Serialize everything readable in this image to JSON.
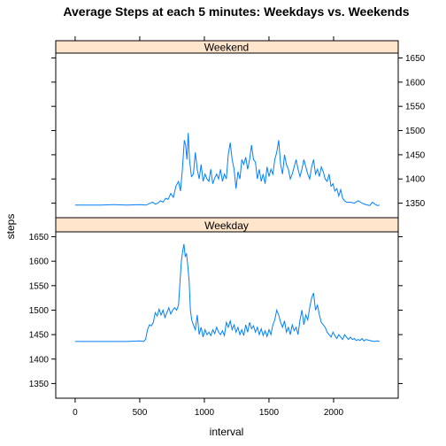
{
  "chart_data": {
    "type": "line",
    "title": "Average Steps at each 5 minutes: Weekdays vs. Weekends",
    "xlabel": "interval",
    "ylabel": "steps",
    "xlim": [
      -150,
      2500
    ],
    "ylim": [
      1320,
      1660
    ],
    "x_ticks": [
      "0",
      "500",
      "1000",
      "1500",
      "2000"
    ],
    "x_tick_values": [
      0,
      500,
      1000,
      1500,
      2000
    ],
    "y_ticks": [
      "1350",
      "1400",
      "1450",
      "1500",
      "1550",
      "1600",
      "1650"
    ],
    "y_tick_values": [
      1350,
      1400,
      1450,
      1500,
      1550,
      1600,
      1650
    ],
    "line_color": "#0080ff",
    "strip_color": "#ffe5cc",
    "panels": [
      {
        "name": "Weekend",
        "y_axis_side": "right",
        "points": [
          [
            0,
            1346
          ],
          [
            100,
            1346
          ],
          [
            200,
            1346
          ],
          [
            300,
            1347
          ],
          [
            400,
            1346
          ],
          [
            500,
            1347
          ],
          [
            550,
            1346
          ],
          [
            580,
            1350
          ],
          [
            600,
            1352
          ],
          [
            620,
            1348
          ],
          [
            640,
            1350
          ],
          [
            660,
            1355
          ],
          [
            680,
            1352
          ],
          [
            700,
            1360
          ],
          [
            720,
            1358
          ],
          [
            740,
            1370
          ],
          [
            760,
            1362
          ],
          [
            780,
            1385
          ],
          [
            800,
            1395
          ],
          [
            815,
            1375
          ],
          [
            830,
            1420
          ],
          [
            845,
            1480
          ],
          [
            855,
            1470
          ],
          [
            865,
            1440
          ],
          [
            875,
            1495
          ],
          [
            885,
            1440
          ],
          [
            900,
            1405
          ],
          [
            915,
            1410
          ],
          [
            930,
            1455
          ],
          [
            945,
            1420
          ],
          [
            960,
            1400
          ],
          [
            975,
            1430
          ],
          [
            990,
            1395
          ],
          [
            1005,
            1410
          ],
          [
            1020,
            1400
          ],
          [
            1035,
            1395
          ],
          [
            1050,
            1420
          ],
          [
            1065,
            1390
          ],
          [
            1080,
            1402
          ],
          [
            1095,
            1410
          ],
          [
            1110,
            1400
          ],
          [
            1125,
            1420
          ],
          [
            1140,
            1395
          ],
          [
            1155,
            1410
          ],
          [
            1170,
            1400
          ],
          [
            1185,
            1450
          ],
          [
            1200,
            1475
          ],
          [
            1215,
            1440
          ],
          [
            1230,
            1420
          ],
          [
            1245,
            1380
          ],
          [
            1260,
            1415
          ],
          [
            1275,
            1400
          ],
          [
            1290,
            1440
          ],
          [
            1305,
            1430
          ],
          [
            1320,
            1445
          ],
          [
            1335,
            1420
          ],
          [
            1350,
            1440
          ],
          [
            1365,
            1470
          ],
          [
            1380,
            1440
          ],
          [
            1395,
            1435
          ],
          [
            1410,
            1400
          ],
          [
            1425,
            1420
          ],
          [
            1440,
            1395
          ],
          [
            1455,
            1410
          ],
          [
            1470,
            1390
          ],
          [
            1485,
            1425
          ],
          [
            1500,
            1405
          ],
          [
            1515,
            1420
          ],
          [
            1530,
            1410
          ],
          [
            1545,
            1440
          ],
          [
            1560,
            1455
          ],
          [
            1575,
            1480
          ],
          [
            1590,
            1430
          ],
          [
            1605,
            1410
          ],
          [
            1620,
            1450
          ],
          [
            1635,
            1430
          ],
          [
            1650,
            1420
          ],
          [
            1665,
            1400
          ],
          [
            1680,
            1410
          ],
          [
            1695,
            1425
          ],
          [
            1710,
            1440
          ],
          [
            1725,
            1420
          ],
          [
            1740,
            1405
          ],
          [
            1755,
            1420
          ],
          [
            1770,
            1440
          ],
          [
            1785,
            1425
          ],
          [
            1800,
            1410
          ],
          [
            1815,
            1400
          ],
          [
            1830,
            1425
          ],
          [
            1845,
            1440
          ],
          [
            1860,
            1410
          ],
          [
            1875,
            1420
          ],
          [
            1890,
            1405
          ],
          [
            1905,
            1425
          ],
          [
            1920,
            1415
          ],
          [
            1935,
            1400
          ],
          [
            1950,
            1395
          ],
          [
            1965,
            1410
          ],
          [
            1980,
            1385
          ],
          [
            1995,
            1390
          ],
          [
            2010,
            1375
          ],
          [
            2025,
            1380
          ],
          [
            2040,
            1365
          ],
          [
            2055,
            1378
          ],
          [
            2070,
            1360
          ],
          [
            2085,
            1355
          ],
          [
            2100,
            1352
          ],
          [
            2130,
            1352
          ],
          [
            2160,
            1350
          ],
          [
            2190,
            1355
          ],
          [
            2220,
            1350
          ],
          [
            2250,
            1347
          ],
          [
            2280,
            1345
          ],
          [
            2300,
            1352
          ],
          [
            2320,
            1348
          ],
          [
            2340,
            1345
          ],
          [
            2355,
            1346
          ]
        ]
      },
      {
        "name": "Weekday",
        "y_axis_side": "left",
        "points": [
          [
            0,
            1436
          ],
          [
            100,
            1436
          ],
          [
            200,
            1436
          ],
          [
            300,
            1436
          ],
          [
            400,
            1436
          ],
          [
            500,
            1437
          ],
          [
            530,
            1436
          ],
          [
            545,
            1440
          ],
          [
            560,
            1460
          ],
          [
            575,
            1470
          ],
          [
            590,
            1468
          ],
          [
            605,
            1475
          ],
          [
            620,
            1495
          ],
          [
            635,
            1488
          ],
          [
            650,
            1502
          ],
          [
            665,
            1490
          ],
          [
            680,
            1500
          ],
          [
            695,
            1485
          ],
          [
            710,
            1495
          ],
          [
            725,
            1505
          ],
          [
            740,
            1492
          ],
          [
            755,
            1500
          ],
          [
            770,
            1505
          ],
          [
            785,
            1500
          ],
          [
            800,
            1510
          ],
          [
            812,
            1560
          ],
          [
            822,
            1600
          ],
          [
            832,
            1620
          ],
          [
            842,
            1635
          ],
          [
            852,
            1610
          ],
          [
            862,
            1615
          ],
          [
            872,
            1590
          ],
          [
            882,
            1560
          ],
          [
            892,
            1500
          ],
          [
            902,
            1480
          ],
          [
            915,
            1470
          ],
          [
            930,
            1460
          ],
          [
            945,
            1490
          ],
          [
            960,
            1450
          ],
          [
            975,
            1465
          ],
          [
            990,
            1445
          ],
          [
            1005,
            1460
          ],
          [
            1020,
            1450
          ],
          [
            1035,
            1455
          ],
          [
            1050,
            1448
          ],
          [
            1065,
            1460
          ],
          [
            1080,
            1452
          ],
          [
            1095,
            1465
          ],
          [
            1110,
            1455
          ],
          [
            1125,
            1450
          ],
          [
            1140,
            1458
          ],
          [
            1155,
            1448
          ],
          [
            1170,
            1475
          ],
          [
            1185,
            1465
          ],
          [
            1200,
            1478
          ],
          [
            1215,
            1460
          ],
          [
            1230,
            1470
          ],
          [
            1245,
            1455
          ],
          [
            1260,
            1465
          ],
          [
            1275,
            1450
          ],
          [
            1290,
            1460
          ],
          [
            1305,
            1448
          ],
          [
            1320,
            1470
          ],
          [
            1335,
            1455
          ],
          [
            1350,
            1475
          ],
          [
            1365,
            1462
          ],
          [
            1380,
            1468
          ],
          [
            1395,
            1455
          ],
          [
            1410,
            1465
          ],
          [
            1425,
            1450
          ],
          [
            1440,
            1462
          ],
          [
            1455,
            1448
          ],
          [
            1470,
            1458
          ],
          [
            1485,
            1446
          ],
          [
            1500,
            1460
          ],
          [
            1515,
            1450
          ],
          [
            1530,
            1470
          ],
          [
            1545,
            1480
          ],
          [
            1560,
            1500
          ],
          [
            1575,
            1490
          ],
          [
            1590,
            1475
          ],
          [
            1605,
            1465
          ],
          [
            1620,
            1478
          ],
          [
            1635,
            1455
          ],
          [
            1650,
            1465
          ],
          [
            1665,
            1450
          ],
          [
            1680,
            1470
          ],
          [
            1695,
            1458
          ],
          [
            1710,
            1465
          ],
          [
            1725,
            1450
          ],
          [
            1740,
            1480
          ],
          [
            1755,
            1500
          ],
          [
            1770,
            1470
          ],
          [
            1785,
            1490
          ],
          [
            1800,
            1480
          ],
          [
            1815,
            1505
          ],
          [
            1830,
            1525
          ],
          [
            1845,
            1535
          ],
          [
            1860,
            1500
          ],
          [
            1875,
            1510
          ],
          [
            1890,
            1490
          ],
          [
            1905,
            1475
          ],
          [
            1920,
            1470
          ],
          [
            1935,
            1465
          ],
          [
            1950,
            1455
          ],
          [
            1965,
            1450
          ],
          [
            1980,
            1445
          ],
          [
            1995,
            1455
          ],
          [
            2010,
            1448
          ],
          [
            2025,
            1442
          ],
          [
            2040,
            1450
          ],
          [
            2055,
            1445
          ],
          [
            2070,
            1440
          ],
          [
            2085,
            1450
          ],
          [
            2100,
            1445
          ],
          [
            2115,
            1440
          ],
          [
            2130,
            1445
          ],
          [
            2145,
            1440
          ],
          [
            2160,
            1442
          ],
          [
            2175,
            1438
          ],
          [
            2190,
            1440
          ],
          [
            2205,
            1438
          ],
          [
            2220,
            1442
          ],
          [
            2235,
            1437
          ],
          [
            2250,
            1440
          ],
          [
            2280,
            1438
          ],
          [
            2310,
            1436
          ],
          [
            2340,
            1437
          ],
          [
            2355,
            1436
          ]
        ]
      }
    ]
  }
}
